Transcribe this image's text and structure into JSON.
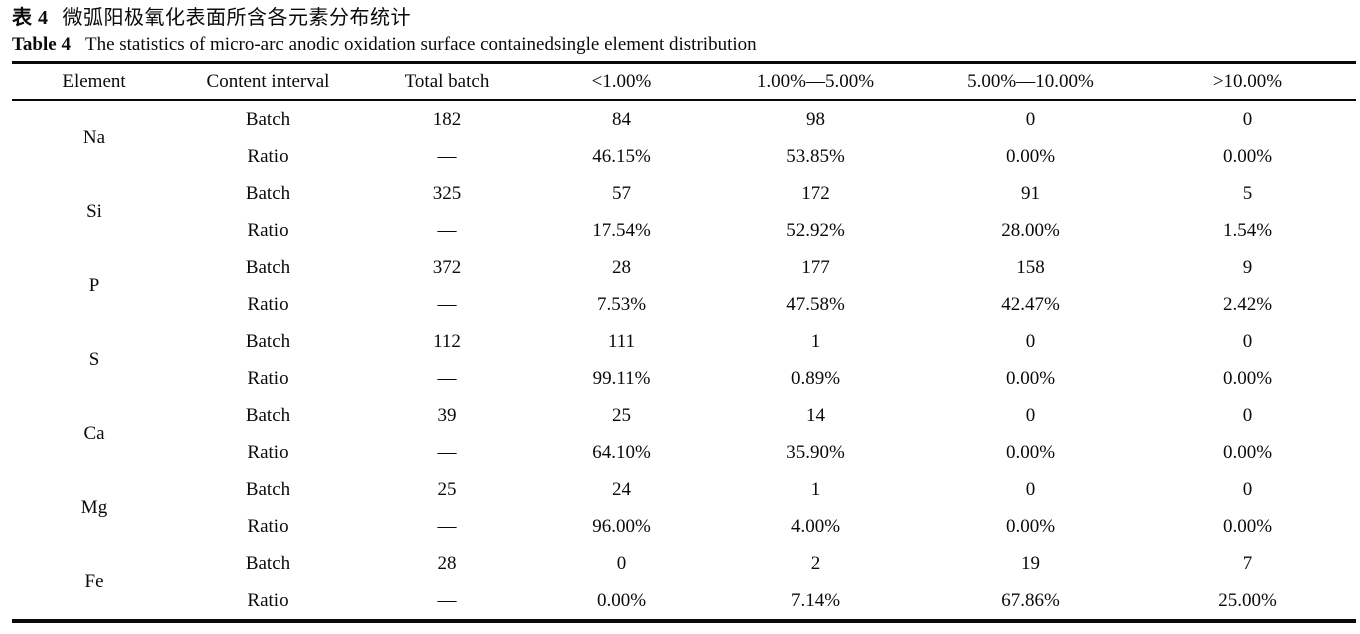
{
  "caption": {
    "zh_label": "表 4",
    "zh_title": "微弧阳极氧化表面所含各元素分布统计",
    "en_label": "Table 4",
    "en_title": "The statistics of micro-arc anodic oxidation surface containedsingle element distribution"
  },
  "table": {
    "headers": [
      "Element",
      "Content interval",
      "Total batch",
      "<1.00%",
      "1.00%—5.00%",
      "5.00%—10.00%",
      ">10.00%"
    ],
    "row_labels": {
      "batch": "Batch",
      "ratio": "Ratio"
    },
    "ratio_total_dash": "—",
    "groups": [
      {
        "element": "Na",
        "total": "182",
        "batch": [
          "84",
          "98",
          "0",
          "0"
        ],
        "ratio": [
          "46.15%",
          "53.85%",
          "0.00%",
          "0.00%"
        ]
      },
      {
        "element": "Si",
        "total": "325",
        "batch": [
          "57",
          "172",
          "91",
          "5"
        ],
        "ratio": [
          "17.54%",
          "52.92%",
          "28.00%",
          "1.54%"
        ]
      },
      {
        "element": "P",
        "total": "372",
        "batch": [
          "28",
          "177",
          "158",
          "9"
        ],
        "ratio": [
          "7.53%",
          "47.58%",
          "42.47%",
          "2.42%"
        ]
      },
      {
        "element": "S",
        "total": "112",
        "batch": [
          "111",
          "1",
          "0",
          "0"
        ],
        "ratio": [
          "99.11%",
          "0.89%",
          "0.00%",
          "0.00%"
        ]
      },
      {
        "element": "Ca",
        "total": "39",
        "batch": [
          "25",
          "14",
          "0",
          "0"
        ],
        "ratio": [
          "64.10%",
          "35.90%",
          "0.00%",
          "0.00%"
        ]
      },
      {
        "element": "Mg",
        "total": "25",
        "batch": [
          "24",
          "1",
          "0",
          "0"
        ],
        "ratio": [
          "96.00%",
          "4.00%",
          "0.00%",
          "0.00%"
        ]
      },
      {
        "element": "Fe",
        "total": "28",
        "batch": [
          "0",
          "2",
          "19",
          "7"
        ],
        "ratio": [
          "0.00%",
          "7.14%",
          "67.86%",
          "25.00%"
        ]
      }
    ]
  }
}
